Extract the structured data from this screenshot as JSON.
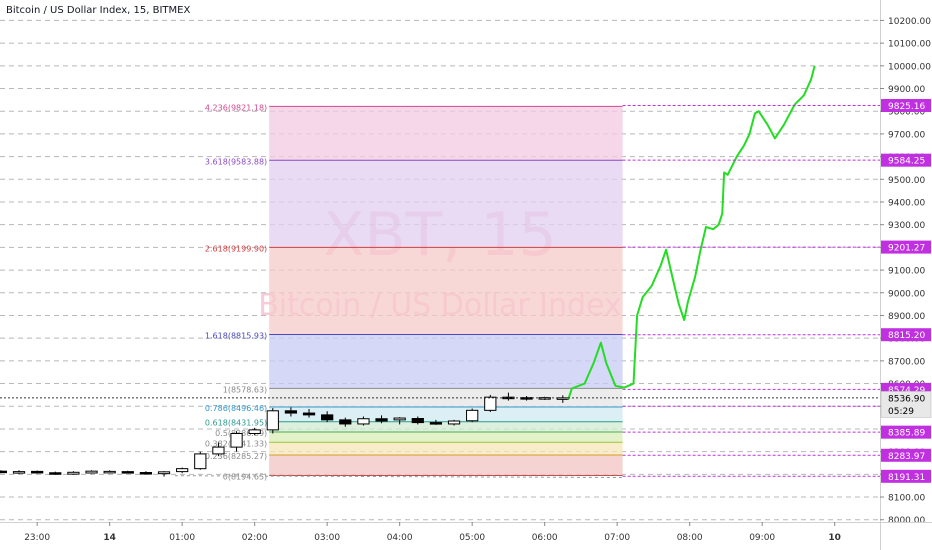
{
  "header": {
    "symbol_title": "Bitcoin / US Dollar Index, 15, BITMEX"
  },
  "watermark": {
    "ticker": "XBT, 15",
    "name": "Bitcoin / US Dollar Index"
  },
  "chart_data": {
    "type": "candlestick",
    "symbol": "Bitcoin / US Dollar Index",
    "interval": "15",
    "exchange": "BITMEX",
    "ylim": [
      7990,
      10290
    ],
    "y_ticks": [
      8000,
      8100,
      8200,
      8300,
      8400,
      8500,
      8600,
      8700,
      8800,
      8900,
      9000,
      9100,
      9200,
      9300,
      9400,
      9500,
      9600,
      9700,
      9800,
      9900,
      10000,
      10100,
      10200
    ],
    "y_tick_labels": [
      "8000.00",
      "8100.00",
      "8200.00",
      "8300.00",
      "8400.00",
      "8500.00",
      "8600.00",
      "8700.00",
      "8800.00",
      "8900.00",
      "9000.00",
      "9100.00",
      "9200.00",
      "9300.00",
      "9400.00",
      "9500.00",
      "9600.00",
      "9700.00",
      "9800.00",
      "9900.00",
      "10000.00",
      "10100.00",
      "10200.00"
    ],
    "x_ticks": [
      {
        "label": "23:00",
        "t": -4
      },
      {
        "label": "14",
        "t": 0
      },
      {
        "label": "01:00",
        "t": 4
      },
      {
        "label": "02:00",
        "t": 8
      },
      {
        "label": "03:00",
        "t": 12
      },
      {
        "label": "04:00",
        "t": 16
      },
      {
        "label": "05:00",
        "t": 20
      },
      {
        "label": "06:00",
        "t": 24
      },
      {
        "label": "07:00",
        "t": 28
      },
      {
        "label": "08:00",
        "t": 32
      },
      {
        "label": "09:00",
        "t": 36
      },
      {
        "label": "10",
        "t": 40
      }
    ],
    "x_range": [
      -6.05,
      42.5
    ],
    "candles": [
      {
        "t": -6,
        "o": 8214,
        "h": 8218,
        "l": 8205,
        "c": 8208
      },
      {
        "t": -5,
        "o": 8208,
        "h": 8218,
        "l": 8202,
        "c": 8212
      },
      {
        "t": -4,
        "o": 8213,
        "h": 8217,
        "l": 8203,
        "c": 8206
      },
      {
        "t": -3,
        "o": 8207,
        "h": 8212,
        "l": 8198,
        "c": 8202
      },
      {
        "t": -2,
        "o": 8201,
        "h": 8214,
        "l": 8198,
        "c": 8209
      },
      {
        "t": -1,
        "o": 8206,
        "h": 8218,
        "l": 8203,
        "c": 8214
      },
      {
        "t": 0,
        "o": 8207,
        "h": 8218,
        "l": 8204,
        "c": 8213
      },
      {
        "t": 1,
        "o": 8212,
        "h": 8216,
        "l": 8204,
        "c": 8207
      },
      {
        "t": 2,
        "o": 8208,
        "h": 8214,
        "l": 8200,
        "c": 8203
      },
      {
        "t": 3,
        "o": 8203,
        "h": 8214,
        "l": 8190,
        "c": 8211
      },
      {
        "t": 4,
        "o": 8212,
        "h": 8230,
        "l": 8205,
        "c": 8225
      },
      {
        "t": 5,
        "o": 8225,
        "h": 8300,
        "l": 8220,
        "c": 8290
      },
      {
        "t": 6,
        "o": 8290,
        "h": 8340,
        "l": 8280,
        "c": 8320
      },
      {
        "t": 7,
        "o": 8320,
        "h": 8390,
        "l": 8300,
        "c": 8380
      },
      {
        "t": 8,
        "o": 8380,
        "h": 8405,
        "l": 8372,
        "c": 8396
      },
      {
        "t": 9,
        "o": 8396,
        "h": 8492,
        "l": 8380,
        "c": 8480
      },
      {
        "t": 10,
        "o": 8480,
        "h": 8495,
        "l": 8455,
        "c": 8470
      },
      {
        "t": 11,
        "o": 8470,
        "h": 8488,
        "l": 8450,
        "c": 8462
      },
      {
        "t": 12,
        "o": 8462,
        "h": 8478,
        "l": 8430,
        "c": 8440
      },
      {
        "t": 13,
        "o": 8440,
        "h": 8450,
        "l": 8410,
        "c": 8422
      },
      {
        "t": 14,
        "o": 8422,
        "h": 8455,
        "l": 8415,
        "c": 8445
      },
      {
        "t": 15,
        "o": 8445,
        "h": 8460,
        "l": 8425,
        "c": 8435
      },
      {
        "t": 16,
        "o": 8440,
        "h": 8452,
        "l": 8420,
        "c": 8448
      },
      {
        "t": 17,
        "o": 8446,
        "h": 8455,
        "l": 8420,
        "c": 8428
      },
      {
        "t": 18,
        "o": 8428,
        "h": 8440,
        "l": 8418,
        "c": 8425
      },
      {
        "t": 19,
        "o": 8422,
        "h": 8440,
        "l": 8415,
        "c": 8435
      },
      {
        "t": 20,
        "o": 8436,
        "h": 8490,
        "l": 8430,
        "c": 8482
      },
      {
        "t": 21,
        "o": 8482,
        "h": 8550,
        "l": 8475,
        "c": 8540
      },
      {
        "t": 22,
        "o": 8540,
        "h": 8560,
        "l": 8525,
        "c": 8538
      },
      {
        "t": 23,
        "o": 8538,
        "h": 8545,
        "l": 8525,
        "c": 8534
      },
      {
        "t": 24,
        "o": 8535,
        "h": 8542,
        "l": 8528,
        "c": 8538
      },
      {
        "t": 25,
        "o": 8537,
        "h": 8548,
        "l": 8515,
        "c": 8537
      }
    ],
    "current_price": "8536.90",
    "countdown": "05:29",
    "price_labels": [
      {
        "value": 9825.16,
        "text": "9825.16"
      },
      {
        "value": 9584.25,
        "text": "9584.25"
      },
      {
        "value": 9201.27,
        "text": "9201.27"
      },
      {
        "value": 8815.2,
        "text": "8815.20"
      },
      {
        "value": 8574.29,
        "text": "8574.29"
      },
      {
        "value": 8500.17,
        "text": "8500.17"
      },
      {
        "value": 8385.89,
        "text": "8385.89"
      },
      {
        "value": 8283.97,
        "text": "8283.97"
      },
      {
        "value": 8191.31,
        "text": "8191.31"
      }
    ],
    "fib_extension": {
      "t_start": 8.8,
      "t_end": 28.3,
      "levels": [
        {
          "value": 8194.65,
          "text": "0(8194.65)",
          "fill": "#f2c4c4",
          "line": "#c05050",
          "text_color": "#8a8a8a"
        },
        {
          "value": 8285.27,
          "text": "0.236(8285.27)",
          "fill": "#f5e6b8",
          "line": "#d4a020",
          "text_color": "#8a8a8a"
        },
        {
          "value": 8341.33,
          "text": "0.382(8341.33)",
          "fill": "#dbedb8",
          "line": "#9bc43c",
          "text_color": "#8a8a8a"
        },
        {
          "value": 8386.69,
          "text": "0.5(8386.69)",
          "fill": "#d2ebd2",
          "line": "#4caf50",
          "text_color": "#8a8a8a"
        },
        {
          "value": 8431.95,
          "text": "0.618(8431.95)",
          "fill": "#cfe9f1",
          "line": "#2a9d8f",
          "text_color": "#2a9d8f"
        },
        {
          "value": 8496.46,
          "text": "0.786(8496.46)",
          "fill": "#e6e6e6",
          "line": "#3399cc",
          "text_color": "#3399cc"
        },
        {
          "value": 8578.63,
          "text": "1(8578.63)",
          "fill": "#c8cbf5",
          "line": "#8a8a8a",
          "text_color": "#8a8a8a"
        },
        {
          "value": 8815.93,
          "text": "1.618(8815.93)",
          "fill": "#f5c9c9",
          "line": "#4a4ac0",
          "text_color": "#4a4ac0"
        },
        {
          "value": 9199.9,
          "text": "2.618(9199.90)",
          "fill": "#e1cff0",
          "line": "#d04040",
          "text_color": "#d04040"
        },
        {
          "value": 9583.88,
          "text": "3.618(9583.88)",
          "fill": "#f3c9e1",
          "line": "#8a4ac0",
          "text_color": "#8a4ac0"
        },
        {
          "value": 9821.18,
          "text": "4.236(9821.18)",
          "fill": null,
          "line": "#d04a90",
          "text_color": "#d04a90"
        }
      ]
    },
    "trend_line": {
      "from": {
        "t": 3.6,
        "v": 8194
      },
      "to": {
        "t": 28.3,
        "v": 8186
      }
    },
    "projection_path": [
      [
        25.3,
        8530
      ],
      [
        25.5,
        8578
      ],
      [
        26.2,
        8600
      ],
      [
        26.7,
        8690
      ],
      [
        27.1,
        8780
      ],
      [
        27.4,
        8690
      ],
      [
        27.9,
        8590
      ],
      [
        28.4,
        8582
      ],
      [
        28.9,
        8600
      ],
      [
        29.1,
        8900
      ],
      [
        29.4,
        8980
      ],
      [
        29.9,
        9030
      ],
      [
        30.4,
        9120
      ],
      [
        30.7,
        9190
      ],
      [
        31.1,
        9050
      ],
      [
        31.4,
        8950
      ],
      [
        31.7,
        8880
      ],
      [
        31.9,
        8960
      ],
      [
        32.3,
        9070
      ],
      [
        32.6,
        9190
      ],
      [
        32.9,
        9290
      ],
      [
        33.3,
        9280
      ],
      [
        33.6,
        9300
      ],
      [
        33.8,
        9350
      ],
      [
        33.9,
        9530
      ],
      [
        34.1,
        9520
      ],
      [
        34.6,
        9600
      ],
      [
        35.0,
        9650
      ],
      [
        35.3,
        9700
      ],
      [
        35.6,
        9790
      ],
      [
        35.8,
        9800
      ],
      [
        36.3,
        9740
      ],
      [
        36.7,
        9680
      ],
      [
        37.2,
        9740
      ],
      [
        37.8,
        9830
      ],
      [
        38.3,
        9870
      ],
      [
        38.7,
        9940
      ],
      [
        38.9,
        10000
      ]
    ]
  }
}
